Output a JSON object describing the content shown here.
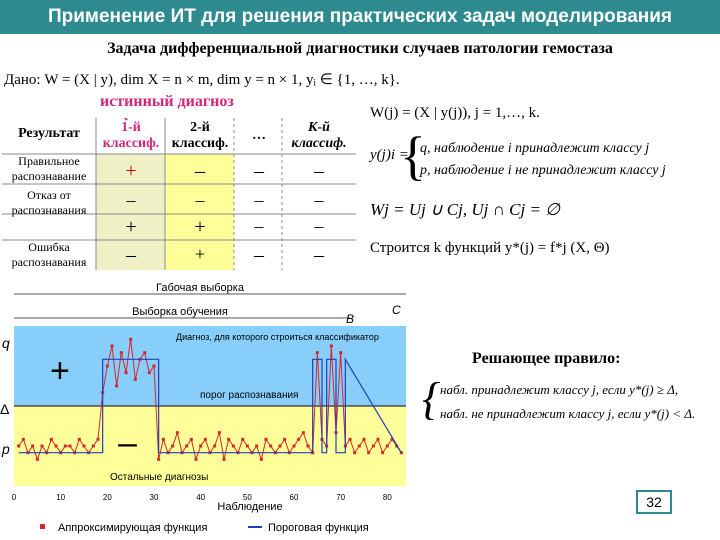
{
  "slide": {
    "title": "Применение ИТ для решения практических задач моделирования",
    "subtitle": "Задача дифференциальной диагностики случаев патологии гемостаза",
    "given": "Дано: W = (X | y), dim X = n × m, dim y = n × 1, yᵢ ∈ {1, …, k}.",
    "true_diagnosis": "истинный диагноз",
    "page_number": "32"
  },
  "table": {
    "headers": [
      "Результат",
      "1-й классиф.",
      "2-й классиф.",
      "…",
      "К-й классиф."
    ],
    "rows": [
      {
        "label": "Правильное распознавание",
        "cells": [
          "+",
          "–",
          "–",
          "–"
        ]
      },
      {
        "label": "Отказ от распознавания",
        "cells": [
          "–",
          "–",
          "–",
          "–"
        ]
      },
      {
        "label": "",
        "cells": [
          "+",
          "+",
          "–",
          "–"
        ]
      },
      {
        "label": "Ошибка распознавания",
        "cells": [
          "–",
          "+",
          "–",
          "–"
        ]
      }
    ]
  },
  "formulas": {
    "wj_def": "W(j) = (X | y(j)), j = 1,…, k.",
    "y_label": "y(j)i =",
    "case1": "q, наблюдение i принадлежит классу j",
    "case2": "p, наблюдение i не принадлежит классу j",
    "wj_eq": "Wj = Uj ∪ Cj, Uj ∩ Cj = ∅",
    "k_functions": "Строится k функций  y*(j) = f*j (X, Θ)"
  },
  "decision": {
    "title": "Решающее правило:",
    "line1": "набл. принадлежит классу j, если y*(j) ≥ Δ,",
    "line2": "набл. не принадлежит классу j, если y*(j) < Δ."
  },
  "chart_data": {
    "type": "line",
    "labels": {
      "training_sample": "Габочая выборка",
      "learning_sample": "Выборка обучения",
      "B": "B",
      "C": "C",
      "annotation": "Диагноз, для которого строиться классификатор",
      "threshold": "порог распознавания",
      "other": "Остальные диагнозы",
      "plus": "+",
      "minus": "–",
      "q": "q",
      "delta": "Δ",
      "p": "p",
      "xlabel": "Наблюдение",
      "legend_approx": "Аппроксимирующая функция",
      "legend_threshold": "Пороговая функция"
    },
    "xticks": [
      "0",
      "10",
      "20",
      "30",
      "40",
      "50",
      "60",
      "70",
      "80"
    ],
    "xlim": [
      0,
      84
    ],
    "series": [
      {
        "name": "Аппроксимирующая функция",
        "color": "#d62728",
        "x": [
          1,
          2,
          3,
          4,
          5,
          6,
          7,
          8,
          9,
          10,
          11,
          12,
          13,
          14,
          15,
          16,
          17,
          18,
          19,
          20,
          21,
          22,
          23,
          24,
          25,
          26,
          27,
          28,
          29,
          30,
          31,
          32,
          33,
          34,
          35,
          36,
          37,
          38,
          39,
          40,
          41,
          42,
          43,
          44,
          45,
          46,
          47,
          48,
          49,
          50,
          51,
          52,
          53,
          54,
          55,
          56,
          57,
          58,
          59,
          60,
          61,
          62,
          63,
          64,
          65,
          66,
          67,
          68,
          69,
          70,
          71,
          72,
          73,
          74,
          75,
          76,
          77,
          78,
          79,
          80,
          81,
          82,
          83
        ],
        "y": [
          0.5,
          0.55,
          0.45,
          0.5,
          0.4,
          0.5,
          0.45,
          0.55,
          0.5,
          0.45,
          0.5,
          0.5,
          0.45,
          0.55,
          0.5,
          0.45,
          0.5,
          0.55,
          0.9,
          1.1,
          1.25,
          0.95,
          1.2,
          1.05,
          1.3,
          1.0,
          1.15,
          1.2,
          1.05,
          1.1,
          0.4,
          0.55,
          0.45,
          0.5,
          0.6,
          0.45,
          0.5,
          0.55,
          0.4,
          0.5,
          0.55,
          0.45,
          0.5,
          0.6,
          0.4,
          0.55,
          0.5,
          0.45,
          0.55,
          0.5,
          0.45,
          0.5,
          0.4,
          0.55,
          0.5,
          0.45,
          0.5,
          0.55,
          0.45,
          0.5,
          0.55,
          0.6,
          0.5,
          0.45,
          1.2,
          0.55,
          0.5,
          1.25,
          0.6,
          1.2,
          0.5,
          0.55,
          0.45,
          0.5,
          0.55,
          0.45,
          0.5,
          0.55,
          0.45,
          0.5,
          0.55,
          0.5,
          0.45
        ]
      },
      {
        "name": "Пороговая функция",
        "color": "#1f3fbf",
        "x": [
          1,
          19,
          19,
          31,
          31,
          64,
          64,
          66,
          66,
          67,
          67,
          69,
          69,
          71,
          71,
          83
        ],
        "y": [
          0.45,
          0.45,
          1.15,
          1.15,
          0.45,
          0.45,
          1.15,
          1.15,
          0.45,
          0.45,
          1.15,
          1.15,
          0.45,
          0.45,
          1.15,
          0.45
        ]
      }
    ],
    "threshold_level": 0.8,
    "ylim": [
      0.2,
      1.4
    ]
  }
}
